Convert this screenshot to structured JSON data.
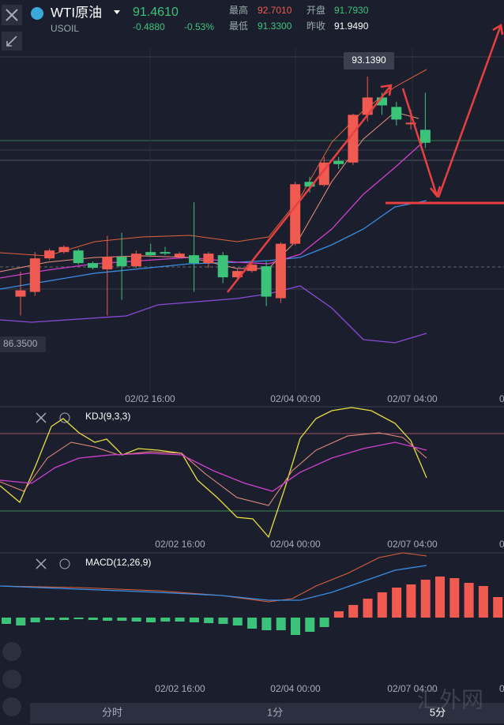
{
  "header": {
    "name": "WTI原油",
    "price": "91.4610",
    "symbol": "USOIL",
    "change": "-0.4880",
    "change_pct": "-0.53%",
    "stats": [
      {
        "label": "最高",
        "value": "92.7010"
      },
      {
        "label": "开盘",
        "value": "91.7930"
      },
      {
        "label": "最低",
        "value": "91.3300"
      },
      {
        "label": "昨收",
        "value": "91.9490"
      }
    ]
  },
  "main_chart": {
    "high_label": 93.139,
    "high_text": "93.1390",
    "low_label": 86.35,
    "low_text": "86.3500",
    "candles": [
      {
        "open": 87.56,
        "high": 88.19,
        "low": 87.08,
        "close": 87.72
      },
      {
        "open": 87.68,
        "high": 88.69,
        "low": 87.58,
        "close": 88.53
      },
      {
        "open": 88.53,
        "high": 88.78,
        "low": 88.49,
        "close": 88.73
      },
      {
        "open": 88.69,
        "high": 88.86,
        "low": 88.65,
        "close": 88.82
      },
      {
        "open": 88.73,
        "high": 88.78,
        "low": 88.37,
        "close": 88.41
      },
      {
        "open": 88.41,
        "high": 88.45,
        "low": 88.25,
        "close": 88.29
      },
      {
        "open": 88.25,
        "high": 89.1,
        "low": 87.08,
        "close": 88.57
      },
      {
        "open": 88.57,
        "high": 89.18,
        "low": 87.48,
        "close": 88.33
      },
      {
        "open": 88.33,
        "high": 88.73,
        "low": 88.29,
        "close": 88.65
      },
      {
        "open": 88.69,
        "high": 88.9,
        "low": 88.57,
        "close": 88.61
      },
      {
        "open": 88.69,
        "high": 88.82,
        "low": 88.61,
        "close": 88.65
      },
      {
        "open": 88.57,
        "high": 88.69,
        "low": 88.53,
        "close": 88.65
      },
      {
        "open": 88.61,
        "high": 89.95,
        "low": 87.68,
        "close": 88.41
      },
      {
        "open": 88.41,
        "high": 88.69,
        "low": 88.29,
        "close": 88.65
      },
      {
        "open": 88.61,
        "high": 88.69,
        "low": 87.9,
        "close": 88.05
      },
      {
        "open": 88.05,
        "high": 88.25,
        "low": 88.0,
        "close": 88.21
      },
      {
        "open": 88.21,
        "high": 88.45,
        "low": 88.17,
        "close": 88.37
      },
      {
        "open": 88.33,
        "high": 88.45,
        "low": 87.32,
        "close": 87.56
      },
      {
        "open": 87.52,
        "high": 88.94,
        "low": 87.4,
        "close": 88.9
      },
      {
        "open": 88.9,
        "high": 90.47,
        "low": 88.86,
        "close": 90.41
      },
      {
        "open": 90.47,
        "high": 90.6,
        "low": 90.2,
        "close": 90.35
      },
      {
        "open": 90.39,
        "high": 91.1,
        "low": 90.35,
        "close": 90.96
      },
      {
        "open": 91.0,
        "high": 91.1,
        "low": 90.8,
        "close": 90.92
      },
      {
        "open": 90.96,
        "high": 92.2,
        "low": 90.9,
        "close": 92.17
      },
      {
        "open": 92.17,
        "high": 93.14,
        "low": 92.0,
        "close": 92.61
      },
      {
        "open": 92.61,
        "high": 92.73,
        "low": 92.17,
        "close": 92.41
      },
      {
        "open": 92.37,
        "high": 92.5,
        "low": 91.9,
        "close": 92.05
      },
      {
        "open": 91.93,
        "high": 92.3,
        "low": 91.8,
        "close": 91.97
      },
      {
        "open": 91.79,
        "high": 92.73,
        "low": 91.33,
        "close": 91.461
      }
    ]
  },
  "time_axis": [
    "02/02 16:00",
    "02/04 00:00",
    "02/07 04:00",
    "0"
  ],
  "kdj": {
    "label": "KDJ(9,3,3)"
  },
  "macd": {
    "label": "MACD(12,26,9)"
  },
  "tabs": [
    "分时",
    "1分",
    "5分"
  ],
  "watermark": "汇外网"
}
